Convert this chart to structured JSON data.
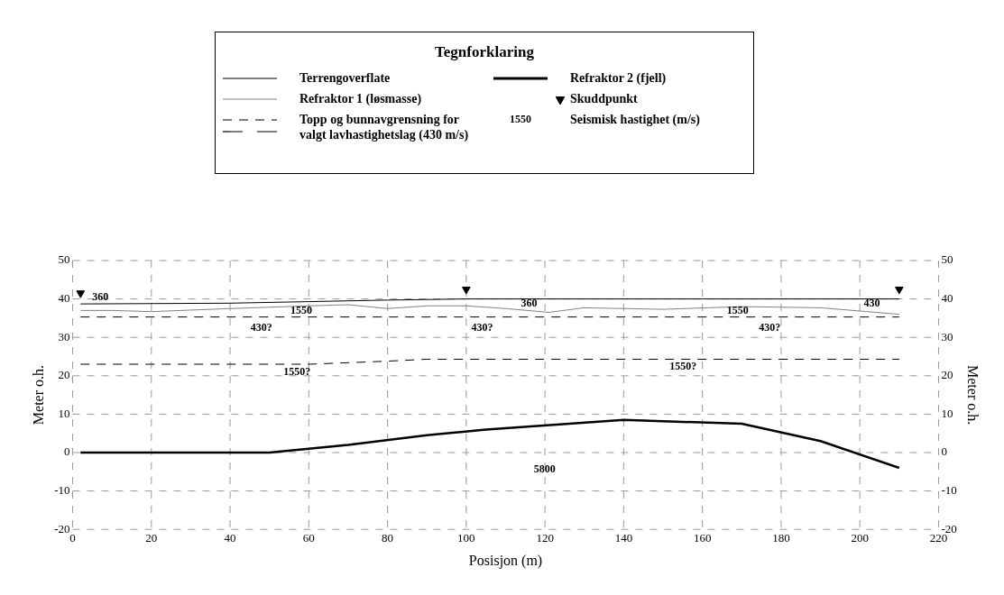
{
  "chart_data": {
    "type": "line",
    "legend_title": "Tegnforklaring",
    "xlabel": "Posisjon (m)",
    "ylabel": "Meter o.h.",
    "y2label": "Meter o.h.",
    "xlim": [
      0,
      220
    ],
    "xticks": [
      0,
      20,
      40,
      60,
      80,
      100,
      120,
      140,
      160,
      180,
      200,
      220
    ],
    "ylim": [
      -20,
      50
    ],
    "yticks": [
      -20,
      -10,
      0,
      10,
      20,
      30,
      40,
      50
    ],
    "y2lim": [
      -20,
      50
    ],
    "y2ticks": [
      -20,
      -10,
      0,
      10,
      20,
      30,
      40,
      50
    ],
    "grid": true,
    "legend": "top",
    "series": [
      {
        "name": "Terrengoverflate",
        "color": "#000000",
        "x": [
          2,
          40,
          60,
          80,
          100,
          210
        ],
        "values": [
          38.7,
          38.9,
          39.3,
          39.7,
          40,
          40
        ]
      },
      {
        "name": "Refraktor 2 (fjell)",
        "color": "#000000",
        "x": [
          2,
          50,
          70,
          90,
          105,
          140,
          170,
          190,
          210
        ],
        "values": [
          0,
          0,
          2,
          4.5,
          6,
          8.5,
          7.5,
          3,
          -4
        ]
      },
      {
        "name": "Refraktor 1 (løsmasse)",
        "color": "#808080",
        "x": [
          2,
          10,
          20,
          40,
          60,
          70,
          80,
          90,
          100,
          110,
          121,
          130,
          150,
          170,
          190,
          210
        ],
        "values": [
          37,
          37,
          36.7,
          37.5,
          38.2,
          38.5,
          37.5,
          38.2,
          38.2,
          37.5,
          36.5,
          37.7,
          37.3,
          38,
          37.7,
          36
        ]
      },
      {
        "name": "Skuddpunkt",
        "type": "scatter",
        "marker": "triangle",
        "color": "#000000",
        "x": [
          2,
          100,
          210
        ],
        "values": [
          41.5,
          42.5,
          42.5
        ]
      },
      {
        "name": "Topp og bunnavgrensning for valgt lavhastighetslag (430 m/s)",
        "color": "#000000",
        "line_style": "dashed",
        "x": [
          2,
          210
        ],
        "values": [
          35.3,
          35.3
        ]
      },
      {
        "color": "#000000",
        "line_style": "dashed",
        "x": [
          2,
          60,
          70,
          80,
          90,
          210
        ],
        "values": [
          23,
          23,
          23.4,
          23.8,
          24.3,
          24.3
        ]
      }
    ],
    "annotations": [
      "1550",
      "Seismisk hastighet (m/s)",
      "360",
      "1550",
      "430?",
      "360",
      "430?",
      "1550",
      "430?",
      "430",
      "1550?",
      "1550?",
      "5800"
    ]
  }
}
